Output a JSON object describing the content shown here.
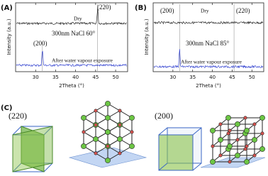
{
  "panel_a": {
    "label": "(A)",
    "y_axis_label": "Intensity (a.u.)",
    "x_axis_label": "2Theta (°)",
    "xlim": [
      25,
      53
    ],
    "xticks": [
      30,
      35,
      40,
      45,
      50
    ],
    "peak_upper": "(220)",
    "upper_trace": "Dry",
    "sample": "300nm NaCl 60°",
    "peak_lower": "(200)",
    "lower_trace": "After water vapour exposure"
  },
  "panel_b": {
    "label": "(B)",
    "y_axis_label": "Intensity (a.u.)",
    "x_axis_label": "2Theta (°)",
    "xlim": [
      25,
      53
    ],
    "xticks": [
      30,
      35,
      40,
      45,
      50
    ],
    "peak_left": "(200)",
    "upper_trace": "Dry",
    "peak_right": "(220)",
    "sample": "300nm NaCl 85°",
    "lower_trace": "After water vapour exposure"
  },
  "panel_c": {
    "label": "(C)",
    "plane_left": "(220)",
    "plane_right": "(200)"
  }
}
